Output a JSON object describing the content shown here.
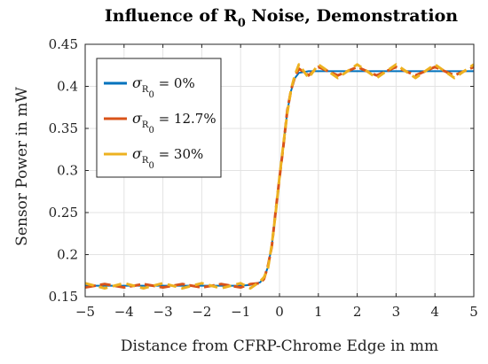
{
  "chart_data": {
    "type": "line",
    "title": {
      "prefix": "Influence of R",
      "subscript": "0",
      "suffix": " Noise, Demonstration"
    },
    "xlabel": "Distance from CFRP-Chrome Edge in mm",
    "ylabel": "Sensor Power in mW",
    "xlim": [
      -5,
      5
    ],
    "ylim": [
      0.15,
      0.45
    ],
    "xticks": [
      -5,
      -4,
      -3,
      -2,
      -1,
      0,
      1,
      2,
      3,
      4,
      5
    ],
    "yticks": [
      0.15,
      0.2,
      0.25,
      0.3,
      0.35,
      0.4,
      0.45
    ],
    "ytick_labels": [
      "0.15",
      "0.2",
      "0.25",
      "0.3",
      "0.35",
      "0.4",
      "0.45"
    ],
    "legend_position": "top-left",
    "x": [
      -5.0,
      -4.5,
      -4.0,
      -3.5,
      -3.0,
      -2.5,
      -2.0,
      -1.5,
      -1.0,
      -0.75,
      -0.5,
      -0.4,
      -0.3,
      -0.2,
      -0.1,
      0.0,
      0.1,
      0.2,
      0.3,
      0.4,
      0.5,
      0.75,
      1.0,
      1.5,
      2.0,
      2.5,
      3.0,
      3.5,
      4.0,
      4.5,
      5.0
    ],
    "series": [
      {
        "legend": {
          "symbol": "σ",
          "subscript": "R",
          "subsubscript": "0",
          "text": " = 0%"
        },
        "color": "#0072BD",
        "values": [
          0.163,
          0.163,
          0.163,
          0.163,
          0.163,
          0.163,
          0.163,
          0.163,
          0.163,
          0.164,
          0.167,
          0.172,
          0.185,
          0.21,
          0.25,
          0.29,
          0.33,
          0.37,
          0.395,
          0.41,
          0.416,
          0.418,
          0.418,
          0.418,
          0.418,
          0.418,
          0.418,
          0.418,
          0.418,
          0.418,
          0.418
        ]
      },
      {
        "legend": {
          "symbol": "σ",
          "subscript": "R",
          "subsubscript": "0",
          "text": " = 12.7%"
        },
        "color": "#D95319",
        "values": [
          0.161,
          0.165,
          0.161,
          0.165,
          0.161,
          0.165,
          0.161,
          0.165,
          0.161,
          0.165,
          0.166,
          0.171,
          0.186,
          0.209,
          0.251,
          0.291,
          0.329,
          0.371,
          0.396,
          0.412,
          0.421,
          0.413,
          0.423,
          0.413,
          0.423,
          0.413,
          0.423,
          0.413,
          0.423,
          0.413,
          0.423
        ]
      },
      {
        "legend": {
          "symbol": "σ",
          "subscript": "R",
          "subsubscript": "0",
          "text": " = 30%"
        },
        "color": "#EDB120",
        "values": [
          0.166,
          0.16,
          0.166,
          0.16,
          0.166,
          0.16,
          0.166,
          0.16,
          0.166,
          0.16,
          0.168,
          0.173,
          0.183,
          0.211,
          0.249,
          0.292,
          0.331,
          0.368,
          0.397,
          0.414,
          0.426,
          0.41,
          0.426,
          0.41,
          0.426,
          0.41,
          0.426,
          0.41,
          0.426,
          0.41,
          0.426
        ]
      }
    ]
  }
}
